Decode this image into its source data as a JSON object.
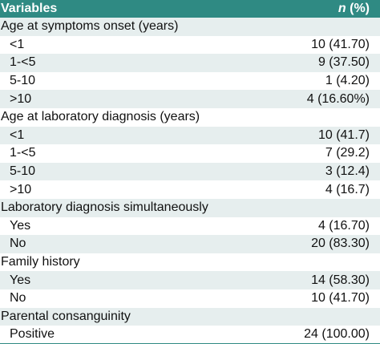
{
  "header": {
    "variables": "Variables",
    "n": "n",
    "pct": " (%)"
  },
  "rows": [
    {
      "type": "group",
      "label": "Age at symptoms onset (years)",
      "value": ""
    },
    {
      "type": "sub",
      "label": "<1",
      "value": "10 (41.70)"
    },
    {
      "type": "sub",
      "label": "1-<5",
      "value": "9 (37.50)"
    },
    {
      "type": "sub",
      "label": "5-10",
      "value": "1 (4.20)"
    },
    {
      "type": "sub",
      "label": ">10",
      "value": "4 (16.60%)"
    },
    {
      "type": "group",
      "label": "Age at laboratory diagnosis (years)",
      "value": ""
    },
    {
      "type": "sub",
      "label": "<1",
      "value": "10 (41.7)"
    },
    {
      "type": "sub",
      "label": "1-<5",
      "value": "7 (29.2)"
    },
    {
      "type": "sub",
      "label": "5-10",
      "value": "3 (12.4)"
    },
    {
      "type": "sub",
      "label": ">10",
      "value": "4 (16.7)"
    },
    {
      "type": "group",
      "label": "Laboratory diagnosis simultaneously",
      "value": ""
    },
    {
      "type": "sub",
      "label": "Yes",
      "value": "4 (16.70)"
    },
    {
      "type": "sub",
      "label": "No",
      "value": "20 (83.30)"
    },
    {
      "type": "group",
      "label": "Family history",
      "value": ""
    },
    {
      "type": "sub",
      "label": "Yes",
      "value": "14 (58.30)"
    },
    {
      "type": "sub",
      "label": "No",
      "value": "10 (41.70)"
    },
    {
      "type": "group",
      "label": "Parental consanguinity",
      "value": ""
    },
    {
      "type": "sub",
      "label": "Positive",
      "value": "24 (100.00)"
    }
  ]
}
